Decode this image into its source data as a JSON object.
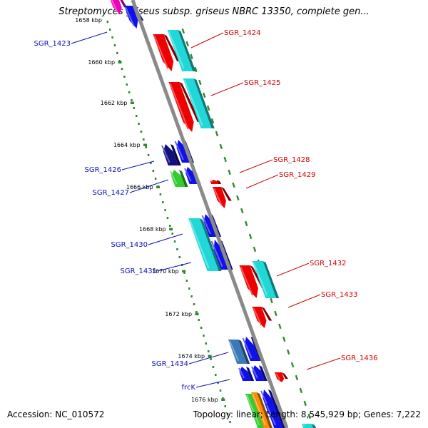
{
  "title": "Streptomyces griseus subsp. griseus NBRC 13350, complete gen...",
  "footer": {
    "accession": "Accession: NC_010572",
    "summary": "Topology: linear; Length: 8,545,929 bp; Genes: 7,222"
  },
  "ruler_ticks": [
    "1658 kbp",
    "1660 kbp",
    "1662 kbp",
    "1664 kbp",
    "1666 kbp",
    "1668 kbp",
    "1670 kbp",
    "1672 kbp",
    "1674 kbp",
    "1676 kbp"
  ],
  "left_labels": [
    "SGR_1423",
    "SGR_1426",
    "SGR_1427",
    "SGR_1430",
    "SGR_1431",
    "SGR_1434",
    "frcK"
  ],
  "right_labels": [
    "SGR_1424",
    "SGR_1425",
    "SGR_1428",
    "SGR_1429",
    "SGR_1432",
    "SGR_1433",
    "SGR_1436"
  ],
  "colors": {
    "backbone": "#8a8a8a",
    "ruler_dots": "#2f8a2f",
    "left_label": "#0a10b8",
    "right_label": "#d00000",
    "gene_red": "#ee0000",
    "gene_cyan": "#20d8d8",
    "gene_blue": "#1010e8",
    "gene_navy": "#101080",
    "gene_green": "#33cc33",
    "gene_steel": "#3a78b8",
    "gene_orange": "#ff8c00",
    "gene_magenta": "#ee00bb"
  }
}
